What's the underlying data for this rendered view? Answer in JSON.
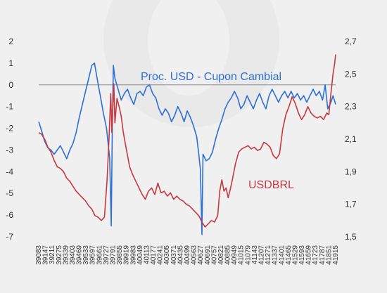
{
  "chart_data": {
    "type": "line",
    "title": "",
    "xlabel": "",
    "ylabel_left": "",
    "ylabel_right": "",
    "grid": false,
    "x_start": 39083,
    "x_end": 41915,
    "x_tick_labels": [
      "39083",
      "39147",
      "39211",
      "39275",
      "39339",
      "39403",
      "39469",
      "39533",
      "39597",
      "39661",
      "39727",
      "39791",
      "39855",
      "39919",
      "39983",
      "40049",
      "40113",
      "40177",
      "40241",
      "40305",
      "40371",
      "40435",
      "40499",
      "40563",
      "40627",
      "40691",
      "40757",
      "40821",
      "40885",
      "40949",
      "41015",
      "41079",
      "41143",
      "41207",
      "41271",
      "41337",
      "41401",
      "41465",
      "41529",
      "41593",
      "41659",
      "41723",
      "41787",
      "41851",
      "41915"
    ],
    "y_left": {
      "min": -7,
      "max": 2,
      "ticks": [
        "2",
        "1",
        "0",
        "-1",
        "-2",
        "-3",
        "-4",
        "-5",
        "-6",
        "-7"
      ]
    },
    "y_right": {
      "min": 1.5,
      "max": 2.7,
      "ticks": [
        "2,7",
        "2,5",
        "2,3",
        "2,1",
        "1,9",
        "1,7",
        "1,5"
      ]
    },
    "reference_line": {
      "axis": "left",
      "value": 0,
      "color": "#888888"
    },
    "series": [
      {
        "name": "Proc. USD - Cupon Cambial",
        "axis": "left",
        "color": "#2e6fd4",
        "points": [
          [
            39083,
            -1.7
          ],
          [
            39110,
            -2.1
          ],
          [
            39140,
            -2.6
          ],
          [
            39170,
            -2.9
          ],
          [
            39200,
            -3.0
          ],
          [
            39230,
            -3.2
          ],
          [
            39260,
            -3.0
          ],
          [
            39290,
            -2.8
          ],
          [
            39320,
            -3.1
          ],
          [
            39350,
            -3.4
          ],
          [
            39380,
            -3.0
          ],
          [
            39410,
            -2.7
          ],
          [
            39440,
            -2.2
          ],
          [
            39470,
            -1.5
          ],
          [
            39500,
            -0.9
          ],
          [
            39530,
            -0.3
          ],
          [
            39560,
            0.3
          ],
          [
            39590,
            0.9
          ],
          [
            39615,
            1.0
          ],
          [
            39640,
            0.3
          ],
          [
            39670,
            -0.5
          ],
          [
            39700,
            -1.3
          ],
          [
            39730,
            -2.0
          ],
          [
            39760,
            -3.4
          ],
          [
            39775,
            -6.5
          ],
          [
            39785,
            -2.0
          ],
          [
            39795,
            0.9
          ],
          [
            39810,
            0.3
          ],
          [
            39840,
            -0.2
          ],
          [
            39870,
            -0.7
          ],
          [
            39900,
            -0.4
          ],
          [
            39930,
            -0.2
          ],
          [
            39960,
            -0.6
          ],
          [
            39990,
            -0.9
          ],
          [
            40020,
            -0.4
          ],
          [
            40050,
            -0.3
          ],
          [
            40080,
            -0.5
          ],
          [
            40110,
            -0.1
          ],
          [
            40140,
            0.0
          ],
          [
            40170,
            -0.4
          ],
          [
            40200,
            -0.6
          ],
          [
            40230,
            -1.1
          ],
          [
            40260,
            -1.4
          ],
          [
            40290,
            -1.1
          ],
          [
            40320,
            -1.3
          ],
          [
            40350,
            -1.7
          ],
          [
            40380,
            -1.4
          ],
          [
            40410,
            -1.0
          ],
          [
            40440,
            -1.3
          ],
          [
            40470,
            -1.7
          ],
          [
            40500,
            -1.2
          ],
          [
            40530,
            -1.5
          ],
          [
            40560,
            -1.9
          ],
          [
            40590,
            -2.4
          ],
          [
            40610,
            -3.2
          ],
          [
            40625,
            -3.9
          ],
          [
            40640,
            -6.9
          ],
          [
            40650,
            -3.2
          ],
          [
            40680,
            -3.5
          ],
          [
            40710,
            -3.4
          ],
          [
            40740,
            -3.1
          ],
          [
            40770,
            -2.5
          ],
          [
            40800,
            -2.0
          ],
          [
            40830,
            -1.6
          ],
          [
            40860,
            -1.1
          ],
          [
            40890,
            -0.8
          ],
          [
            40920,
            -0.6
          ],
          [
            40950,
            -0.3
          ],
          [
            40980,
            -0.6
          ],
          [
            41010,
            -1.1
          ],
          [
            41040,
            -0.9
          ],
          [
            41070,
            -0.5
          ],
          [
            41100,
            -0.8
          ],
          [
            41130,
            -1.1
          ],
          [
            41160,
            -0.7
          ],
          [
            41190,
            -0.4
          ],
          [
            41220,
            -0.8
          ],
          [
            41250,
            -1.1
          ],
          [
            41280,
            -0.5
          ],
          [
            41310,
            -0.2
          ],
          [
            41340,
            -0.5
          ],
          [
            41370,
            -0.8
          ],
          [
            41400,
            -0.5
          ],
          [
            41430,
            -0.3
          ],
          [
            41460,
            -0.6
          ],
          [
            41490,
            -0.3
          ],
          [
            41520,
            -0.6
          ],
          [
            41550,
            -0.4
          ],
          [
            41580,
            -0.7
          ],
          [
            41610,
            -0.5
          ],
          [
            41640,
            -0.8
          ],
          [
            41670,
            -0.5
          ],
          [
            41700,
            -0.2
          ],
          [
            41730,
            -0.5
          ],
          [
            41760,
            -0.3
          ],
          [
            41790,
            -0.7
          ],
          [
            41815,
            0.0
          ],
          [
            41840,
            -1.1
          ],
          [
            41870,
            -0.8
          ],
          [
            41890,
            -0.5
          ],
          [
            41915,
            -0.9
          ]
        ]
      },
      {
        "name": "USDBRL",
        "axis": "right",
        "color": "#c8383e",
        "points": [
          [
            39083,
            2.14
          ],
          [
            39110,
            2.13
          ],
          [
            39140,
            2.1
          ],
          [
            39170,
            2.05
          ],
          [
            39200,
            2.02
          ],
          [
            39230,
            1.97
          ],
          [
            39260,
            1.93
          ],
          [
            39290,
            1.92
          ],
          [
            39320,
            1.9
          ],
          [
            39350,
            1.86
          ],
          [
            39380,
            1.84
          ],
          [
            39410,
            1.81
          ],
          [
            39440,
            1.78
          ],
          [
            39470,
            1.76
          ],
          [
            39500,
            1.74
          ],
          [
            39530,
            1.72
          ],
          [
            39560,
            1.69
          ],
          [
            39590,
            1.67
          ],
          [
            39620,
            1.63
          ],
          [
            39650,
            1.62
          ],
          [
            39680,
            1.6
          ],
          [
            39710,
            1.62
          ],
          [
            39735,
            1.85
          ],
          [
            39755,
            2.12
          ],
          [
            39770,
            2.38
          ],
          [
            39780,
            2.14
          ],
          [
            39790,
            2.3
          ],
          [
            39800,
            2.44
          ],
          [
            39810,
            2.2
          ],
          [
            39830,
            2.35
          ],
          [
            39850,
            2.3
          ],
          [
            39870,
            2.24
          ],
          [
            39890,
            2.14
          ],
          [
            39910,
            2.07
          ],
          [
            39930,
            2.0
          ],
          [
            39950,
            1.93
          ],
          [
            39980,
            1.88
          ],
          [
            40010,
            1.84
          ],
          [
            40040,
            1.8
          ],
          [
            40070,
            1.76
          ],
          [
            40100,
            1.73
          ],
          [
            40130,
            1.78
          ],
          [
            40160,
            1.8
          ],
          [
            40190,
            1.76
          ],
          [
            40220,
            1.83
          ],
          [
            40250,
            1.77
          ],
          [
            40280,
            1.78
          ],
          [
            40310,
            1.75
          ],
          [
            40340,
            1.77
          ],
          [
            40370,
            1.73
          ],
          [
            40400,
            1.75
          ],
          [
            40430,
            1.73
          ],
          [
            40460,
            1.72
          ],
          [
            40490,
            1.7
          ],
          [
            40520,
            1.69
          ],
          [
            40550,
            1.67
          ],
          [
            40580,
            1.65
          ],
          [
            40610,
            1.63
          ],
          [
            40640,
            1.59
          ],
          [
            40670,
            1.56
          ],
          [
            40700,
            1.58
          ],
          [
            40730,
            1.6
          ],
          [
            40760,
            1.59
          ],
          [
            40790,
            1.63
          ],
          [
            40810,
            1.78
          ],
          [
            40830,
            1.85
          ],
          [
            40850,
            1.78
          ],
          [
            40870,
            1.8
          ],
          [
            40890,
            1.74
          ],
          [
            40910,
            1.79
          ],
          [
            40930,
            1.85
          ],
          [
            40960,
            1.95
          ],
          [
            40990,
            2.02
          ],
          [
            41020,
            2.04
          ],
          [
            41050,
            2.05
          ],
          [
            41080,
            2.06
          ],
          [
            41110,
            2.04
          ],
          [
            41140,
            2.05
          ],
          [
            41170,
            2.03
          ],
          [
            41200,
            2.04
          ],
          [
            41230,
            2.08
          ],
          [
            41260,
            2.07
          ],
          [
            41290,
            2.05
          ],
          [
            41320,
            2.0
          ],
          [
            41350,
            1.98
          ],
          [
            41380,
            2.01
          ],
          [
            41410,
            2.16
          ],
          [
            41440,
            2.25
          ],
          [
            41470,
            2.3
          ],
          [
            41500,
            2.36
          ],
          [
            41530,
            2.32
          ],
          [
            41560,
            2.26
          ],
          [
            41590,
            2.22
          ],
          [
            41620,
            2.25
          ],
          [
            41650,
            2.3
          ],
          [
            41680,
            2.26
          ],
          [
            41710,
            2.24
          ],
          [
            41740,
            2.23
          ],
          [
            41770,
            2.24
          ],
          [
            41800,
            2.22
          ],
          [
            41830,
            2.26
          ],
          [
            41850,
            2.25
          ],
          [
            41870,
            2.38
          ],
          [
            41890,
            2.5
          ],
          [
            41905,
            2.56
          ],
          [
            41915,
            2.62
          ]
        ]
      }
    ]
  }
}
